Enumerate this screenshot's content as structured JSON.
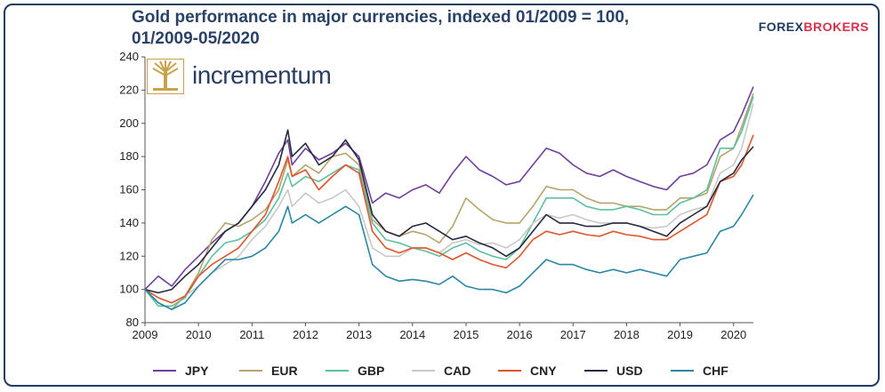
{
  "header": {
    "title_line1": "Gold performance in major currencies, indexed 01/2009 = 100,",
    "title_line2": "01/2009-05/2020",
    "brand_part1": "FOREX",
    "brand_part2": "BROKERS",
    "logo_text": "incrementum"
  },
  "colors": {
    "JPY": "#6f3f9a",
    "EUR": "#b5a46c",
    "GBP": "#5ebfa0",
    "CAD": "#c8c8c8",
    "CNY": "#e0542b",
    "USD": "#222a3f",
    "CHF": "#2b86a5"
  },
  "chart_data": {
    "type": "line",
    "title": "Gold performance in major currencies, indexed 01/2009 = 100, 01/2009-05/2020",
    "xlabel": "",
    "ylabel": "",
    "ylim": [
      80,
      240
    ],
    "yticks": [
      80,
      100,
      120,
      140,
      160,
      180,
      200,
      220,
      240
    ],
    "xlim": [
      2009,
      2020.37
    ],
    "xticks": [
      2009,
      2010,
      2011,
      2012,
      2013,
      2014,
      2015,
      2016,
      2017,
      2018,
      2019,
      2020
    ],
    "legend_position": "bottom",
    "grid": false,
    "series": [
      {
        "name": "JPY",
        "x": [
          2009.0,
          2009.25,
          2009.5,
          2009.75,
          2010.0,
          2010.25,
          2010.5,
          2010.75,
          2011.0,
          2011.25,
          2011.5,
          2011.67,
          2011.75,
          2012.0,
          2012.25,
          2012.5,
          2012.75,
          2013.0,
          2013.25,
          2013.5,
          2013.75,
          2014.0,
          2014.25,
          2014.5,
          2014.75,
          2015.0,
          2015.25,
          2015.5,
          2015.75,
          2016.0,
          2016.25,
          2016.5,
          2016.75,
          2017.0,
          2017.25,
          2017.5,
          2017.75,
          2018.0,
          2018.25,
          2018.5,
          2018.75,
          2019.0,
          2019.25,
          2019.5,
          2019.75,
          2020.0,
          2020.15,
          2020.37
        ],
        "y": [
          100,
          108,
          102,
          112,
          120,
          128,
          135,
          140,
          150,
          165,
          182,
          190,
          175,
          185,
          178,
          182,
          188,
          180,
          152,
          158,
          155,
          160,
          163,
          158,
          170,
          180,
          172,
          168,
          163,
          165,
          175,
          185,
          182,
          175,
          170,
          168,
          172,
          168,
          165,
          162,
          160,
          168,
          170,
          175,
          190,
          195,
          205,
          222
        ]
      },
      {
        "name": "EUR",
        "x": [
          2009.0,
          2009.25,
          2009.5,
          2009.75,
          2010.0,
          2010.25,
          2010.5,
          2010.75,
          2011.0,
          2011.25,
          2011.5,
          2011.67,
          2011.75,
          2012.0,
          2012.25,
          2012.5,
          2012.75,
          2013.0,
          2013.25,
          2013.5,
          2013.75,
          2014.0,
          2014.25,
          2014.5,
          2014.75,
          2015.0,
          2015.25,
          2015.5,
          2015.75,
          2016.0,
          2016.25,
          2016.5,
          2016.75,
          2017.0,
          2017.25,
          2017.5,
          2017.75,
          2018.0,
          2018.25,
          2018.5,
          2018.75,
          2019.0,
          2019.25,
          2019.5,
          2019.75,
          2020.0,
          2020.15,
          2020.37
        ],
        "y": [
          100,
          92,
          88,
          96,
          110,
          130,
          140,
          138,
          142,
          148,
          160,
          178,
          168,
          175,
          170,
          180,
          182,
          175,
          142,
          135,
          132,
          135,
          133,
          128,
          138,
          155,
          148,
          142,
          140,
          140,
          150,
          162,
          160,
          160,
          155,
          152,
          152,
          150,
          150,
          148,
          148,
          155,
          155,
          158,
          180,
          185,
          198,
          218
        ]
      },
      {
        "name": "GBP",
        "x": [
          2009.0,
          2009.25,
          2009.5,
          2009.75,
          2010.0,
          2010.25,
          2010.5,
          2010.75,
          2011.0,
          2011.25,
          2011.5,
          2011.67,
          2011.75,
          2012.0,
          2012.25,
          2012.5,
          2012.75,
          2013.0,
          2013.25,
          2013.5,
          2013.75,
          2014.0,
          2014.25,
          2014.5,
          2014.75,
          2015.0,
          2015.25,
          2015.5,
          2015.75,
          2016.0,
          2016.25,
          2016.5,
          2016.75,
          2017.0,
          2017.25,
          2017.5,
          2017.75,
          2018.0,
          2018.25,
          2018.5,
          2018.75,
          2019.0,
          2019.25,
          2019.5,
          2019.75,
          2020.0,
          2020.15,
          2020.37
        ],
        "y": [
          100,
          90,
          90,
          95,
          108,
          120,
          128,
          130,
          135,
          142,
          155,
          170,
          162,
          168,
          165,
          170,
          175,
          172,
          140,
          130,
          128,
          125,
          123,
          120,
          125,
          128,
          123,
          120,
          118,
          125,
          140,
          155,
          155,
          155,
          150,
          148,
          148,
          150,
          148,
          145,
          145,
          152,
          155,
          160,
          185,
          185,
          195,
          216
        ]
      },
      {
        "name": "CAD",
        "x": [
          2009.0,
          2009.25,
          2009.5,
          2009.75,
          2010.0,
          2010.25,
          2010.5,
          2010.75,
          2011.0,
          2011.25,
          2011.5,
          2011.67,
          2011.75,
          2012.0,
          2012.25,
          2012.5,
          2012.75,
          2013.0,
          2013.25,
          2013.5,
          2013.75,
          2014.0,
          2014.25,
          2014.5,
          2014.75,
          2015.0,
          2015.25,
          2015.5,
          2015.75,
          2016.0,
          2016.25,
          2016.5,
          2016.75,
          2017.0,
          2017.25,
          2017.5,
          2017.75,
          2018.0,
          2018.25,
          2018.5,
          2018.75,
          2019.0,
          2019.25,
          2019.5,
          2019.75,
          2020.0,
          2020.15,
          2020.37
        ],
        "y": [
          100,
          95,
          92,
          96,
          102,
          110,
          115,
          120,
          130,
          138,
          150,
          160,
          150,
          158,
          152,
          155,
          160,
          150,
          125,
          120,
          120,
          125,
          125,
          122,
          128,
          130,
          127,
          128,
          125,
          130,
          140,
          145,
          143,
          145,
          142,
          140,
          140,
          140,
          138,
          137,
          138,
          145,
          148,
          150,
          170,
          175,
          185,
          212
        ]
      },
      {
        "name": "CNY",
        "x": [
          2009.0,
          2009.25,
          2009.5,
          2009.75,
          2010.0,
          2010.25,
          2010.5,
          2010.75,
          2011.0,
          2011.25,
          2011.5,
          2011.67,
          2011.75,
          2012.0,
          2012.25,
          2012.5,
          2012.75,
          2013.0,
          2013.25,
          2013.5,
          2013.75,
          2014.0,
          2014.25,
          2014.5,
          2014.75,
          2015.0,
          2015.25,
          2015.5,
          2015.75,
          2016.0,
          2016.25,
          2016.5,
          2016.75,
          2017.0,
          2017.25,
          2017.5,
          2017.75,
          2018.0,
          2018.25,
          2018.5,
          2018.75,
          2019.0,
          2019.25,
          2019.5,
          2019.75,
          2020.0,
          2020.15,
          2020.37
        ],
        "y": [
          100,
          95,
          92,
          96,
          108,
          115,
          120,
          125,
          135,
          145,
          165,
          180,
          168,
          172,
          160,
          168,
          175,
          170,
          135,
          125,
          122,
          125,
          125,
          122,
          118,
          122,
          118,
          115,
          113,
          120,
          130,
          135,
          133,
          135,
          133,
          132,
          135,
          133,
          132,
          130,
          130,
          135,
          140,
          145,
          165,
          168,
          175,
          193
        ]
      },
      {
        "name": "USD",
        "x": [
          2009.0,
          2009.25,
          2009.5,
          2009.75,
          2010.0,
          2010.25,
          2010.5,
          2010.75,
          2011.0,
          2011.25,
          2011.5,
          2011.67,
          2011.75,
          2012.0,
          2012.25,
          2012.5,
          2012.75,
          2013.0,
          2013.25,
          2013.5,
          2013.75,
          2014.0,
          2014.25,
          2014.5,
          2014.75,
          2015.0,
          2015.25,
          2015.5,
          2015.75,
          2016.0,
          2016.25,
          2016.5,
          2016.75,
          2017.0,
          2017.25,
          2017.5,
          2017.75,
          2018.0,
          2018.25,
          2018.5,
          2018.75,
          2019.0,
          2019.25,
          2019.5,
          2019.75,
          2020.0,
          2020.15,
          2020.37
        ],
        "y": [
          100,
          98,
          100,
          108,
          115,
          125,
          135,
          140,
          150,
          160,
          175,
          196,
          180,
          188,
          175,
          180,
          190,
          178,
          145,
          135,
          132,
          138,
          140,
          135,
          130,
          132,
          128,
          125,
          120,
          125,
          135,
          145,
          140,
          140,
          138,
          138,
          140,
          140,
          138,
          135,
          132,
          140,
          145,
          150,
          165,
          170,
          178,
          186
        ]
      },
      {
        "name": "CHF",
        "x": [
          2009.0,
          2009.25,
          2009.5,
          2009.75,
          2010.0,
          2010.25,
          2010.5,
          2010.75,
          2011.0,
          2011.25,
          2011.5,
          2011.67,
          2011.75,
          2012.0,
          2012.25,
          2012.5,
          2012.75,
          2013.0,
          2013.25,
          2013.5,
          2013.75,
          2014.0,
          2014.25,
          2014.5,
          2014.75,
          2015.0,
          2015.25,
          2015.5,
          2015.75,
          2016.0,
          2016.25,
          2016.5,
          2016.75,
          2017.0,
          2017.25,
          2017.5,
          2017.75,
          2018.0,
          2018.25,
          2018.5,
          2018.75,
          2019.0,
          2019.25,
          2019.5,
          2019.75,
          2020.0,
          2020.15,
          2020.37
        ],
        "y": [
          100,
          92,
          88,
          92,
          102,
          110,
          118,
          118,
          120,
          125,
          135,
          150,
          140,
          145,
          140,
          145,
          150,
          145,
          115,
          108,
          105,
          106,
          105,
          103,
          108,
          102,
          100,
          100,
          98,
          102,
          110,
          118,
          115,
          115,
          112,
          110,
          112,
          110,
          112,
          110,
          108,
          118,
          120,
          122,
          135,
          138,
          145,
          157
        ]
      }
    ]
  }
}
